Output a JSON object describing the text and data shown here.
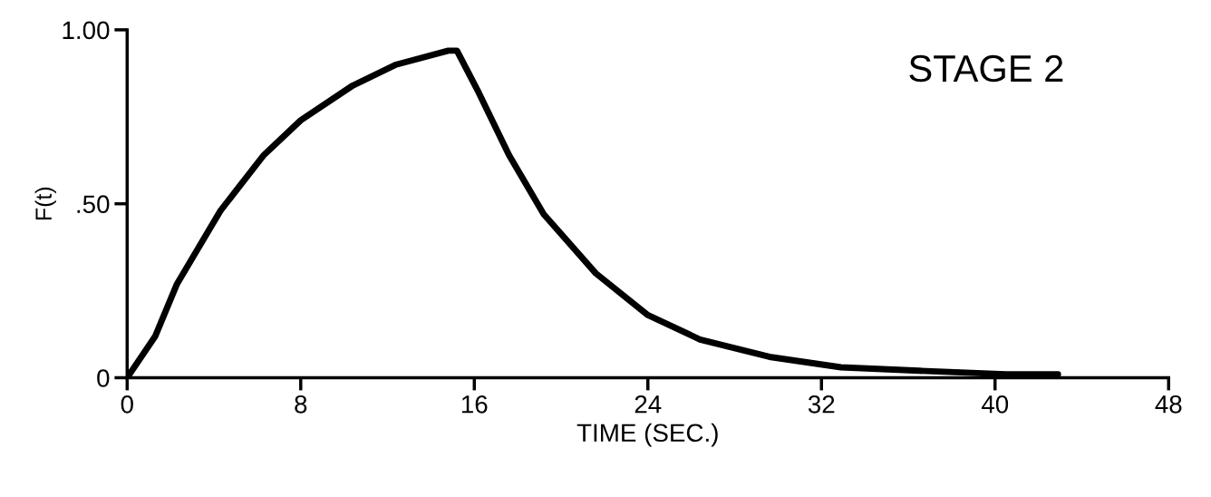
{
  "chart_data": {
    "type": "line",
    "xlabel": "TIME (SEC.)",
    "ylabel": "F(t)",
    "annotations": [
      "STAGE 2"
    ],
    "x": [
      0,
      1.3,
      2.3,
      4.3,
      6.3,
      8.0,
      10.4,
      12.4,
      14.8,
      15.2,
      16.2,
      17.6,
      19.2,
      21.6,
      24,
      26.4,
      29.6,
      32.9,
      36.5,
      40.5,
      42.9
    ],
    "series": [
      {
        "color": "#000000",
        "values": [
          0,
          0.12,
          0.27,
          0.48,
          0.64,
          0.74,
          0.84,
          0.9,
          0.94,
          0.94,
          0.82,
          0.64,
          0.47,
          0.3,
          0.18,
          0.11,
          0.06,
          0.03,
          0.02,
          0.01,
          0.01
        ]
      }
    ],
    "xlim": [
      0,
      48
    ],
    "ylim": [
      0,
      1.0
    ],
    "xticks": [
      0,
      8,
      16,
      24,
      32,
      40,
      48
    ],
    "yticks": [
      0,
      {
        "value": 0.5,
        "label": ".50"
      },
      {
        "value": 1.0,
        "label": "1.00"
      }
    ],
    "grid": false,
    "legend": false,
    "marker": "none",
    "line_style": "solid"
  }
}
